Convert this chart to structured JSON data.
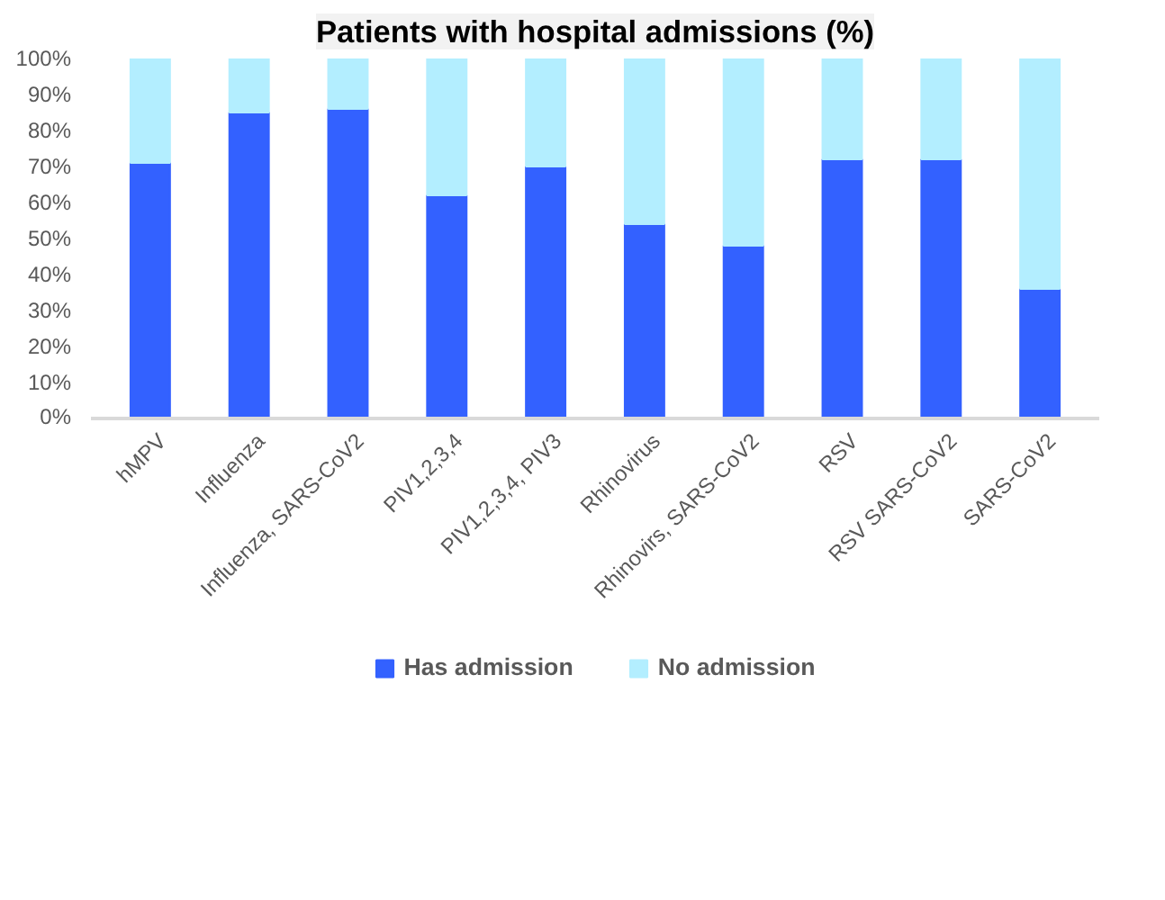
{
  "chart_data": {
    "type": "bar",
    "title": "Patients with hospital admissions (%)",
    "stacked": true,
    "categories": [
      "hMPV",
      "Influenza",
      "Influenza, SARS-CoV2",
      "PIV1,2,3,4",
      "PIV1,2,3,4, PIV3",
      "Rhinovirus",
      "Rhinovirs, SARS-CoV2",
      "RSV",
      "RSV SARS-CoV2",
      "SARS-CoV2"
    ],
    "series": [
      {
        "name": "Has admission",
        "color": "#3361ff",
        "values": [
          71,
          85,
          86,
          62,
          70,
          54,
          48,
          72,
          72,
          36
        ]
      },
      {
        "name": "No admission",
        "color": "#b3eeff",
        "values": [
          29,
          15,
          14,
          38,
          30,
          46,
          52,
          28,
          28,
          64
        ]
      }
    ],
    "ylim": [
      0,
      100
    ],
    "yticks": [
      {
        "value": 0,
        "label": "0%"
      },
      {
        "value": 10,
        "label": "10%"
      },
      {
        "value": 20,
        "label": "20%"
      },
      {
        "value": 30,
        "label": "30%"
      },
      {
        "value": 40,
        "label": "40%"
      },
      {
        "value": 50,
        "label": "50%"
      },
      {
        "value": 60,
        "label": "60%"
      },
      {
        "value": 70,
        "label": "70%"
      },
      {
        "value": 80,
        "label": "80%"
      },
      {
        "value": 90,
        "label": "90%"
      },
      {
        "value": 100,
        "label": "100%"
      }
    ],
    "grid": false,
    "legend": "bottom"
  }
}
